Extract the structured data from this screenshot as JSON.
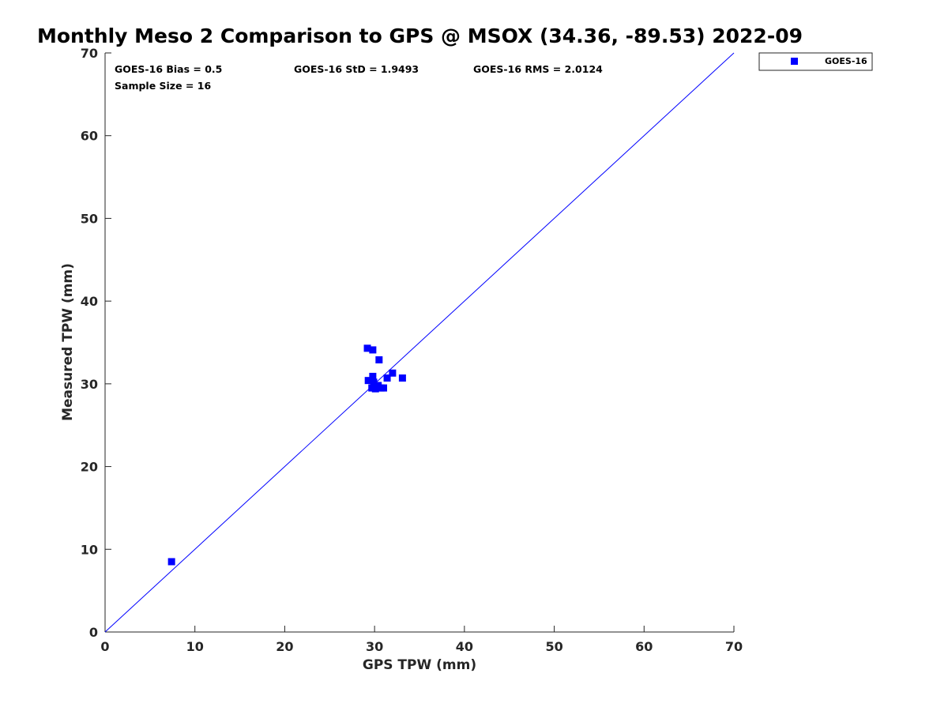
{
  "chart_data": {
    "type": "scatter",
    "title": "Monthly Meso 2 Comparison to GPS @ MSOX (34.36, -89.53) 2022-09",
    "xlabel": "GPS TPW (mm)",
    "ylabel": "Measured TPW (mm)",
    "xlim": [
      0,
      70
    ],
    "ylim": [
      0,
      70
    ],
    "xticks": [
      0,
      10,
      20,
      30,
      40,
      50,
      60,
      70
    ],
    "yticks": [
      0,
      10,
      20,
      30,
      40,
      50,
      60,
      70
    ],
    "grid": false,
    "legend_position": "top-right outside",
    "reference_line": {
      "from": [
        0,
        0
      ],
      "to": [
        70,
        70
      ],
      "color": "#0000ff"
    },
    "stats": {
      "bias": "GOES-16 Bias = 0.5",
      "std": "GOES-16 StD = 1.9493",
      "rms": "GOES-16 RMS = 2.0124",
      "sample": "Sample Size = 16"
    },
    "series": [
      {
        "name": "GOES-16",
        "color": "#0000ff",
        "marker": "square",
        "points": [
          {
            "x": 7.4,
            "y": 8.5
          },
          {
            "x": 29.2,
            "y": 34.3
          },
          {
            "x": 29.8,
            "y": 34.1
          },
          {
            "x": 30.5,
            "y": 32.9
          },
          {
            "x": 29.3,
            "y": 30.4
          },
          {
            "x": 29.8,
            "y": 30.9
          },
          {
            "x": 29.9,
            "y": 30.2
          },
          {
            "x": 30.3,
            "y": 29.6
          },
          {
            "x": 29.7,
            "y": 29.5
          },
          {
            "x": 30.1,
            "y": 29.4
          },
          {
            "x": 30.7,
            "y": 29.5
          },
          {
            "x": 31.0,
            "y": 29.5
          },
          {
            "x": 31.4,
            "y": 30.7
          },
          {
            "x": 32.0,
            "y": 31.3
          },
          {
            "x": 33.1,
            "y": 30.7
          },
          {
            "x": 30.4,
            "y": 29.8
          }
        ]
      }
    ]
  }
}
